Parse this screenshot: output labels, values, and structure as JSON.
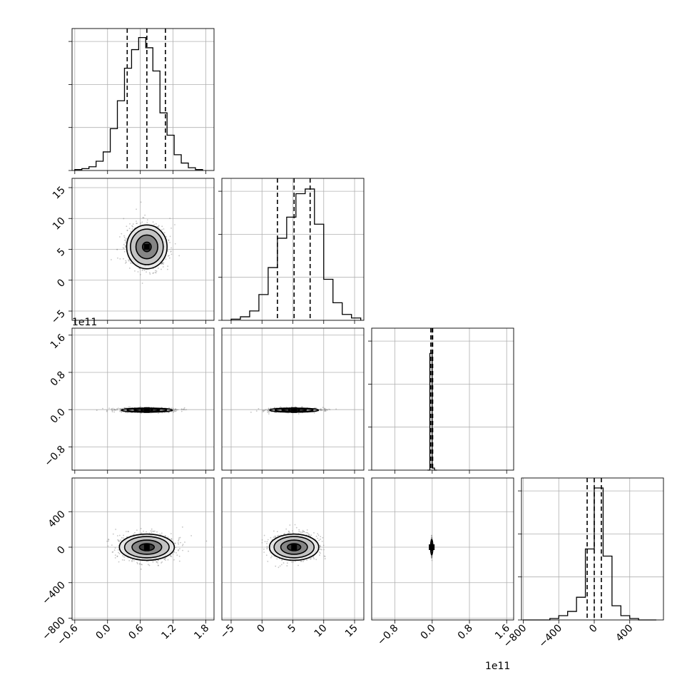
{
  "chart_data": {
    "type": "corner",
    "title": "",
    "colors": {
      "line": "#000000",
      "grid": "#b0b0b0",
      "points": "#7f7f7f",
      "fills": [
        "#ffffff",
        "#e6e6e6",
        "#bdbdbd",
        "#7a7a7a",
        "#2a2a2a"
      ]
    },
    "grid": true,
    "parameters": [
      {
        "ticks": [
          -0.6,
          0.0,
          0.6,
          1.2,
          1.8
        ],
        "tick_labels": [
          "−0.6",
          "0.0",
          "0.6",
          "1.2",
          "1.8"
        ],
        "range": [
          -0.65,
          1.95
        ],
        "quantiles": [
          0.36,
          0.72,
          1.06
        ],
        "offset_text": ""
      },
      {
        "ticks": [
          -5,
          0,
          5,
          10,
          15
        ],
        "tick_labels": [
          "−5",
          "0",
          "5",
          "10",
          "15"
        ],
        "range": [
          -6.5,
          16.5
        ],
        "quantiles": [
          2.5,
          5.2,
          7.8
        ],
        "offset_text": ""
      },
      {
        "ticks": [
          -0.8,
          0.0,
          0.8,
          1.6
        ],
        "tick_labels": [
          "−0.8",
          "0.0",
          "0.8",
          "1.6"
        ],
        "range": [
          -1.3,
          1.75
        ],
        "quantiles": [
          -0.03,
          0.0,
          0.01
        ],
        "offset_text": "1e11"
      },
      {
        "ticks": [
          -800,
          -400,
          0,
          400
        ],
        "tick_labels": [
          "−800",
          "−400",
          "0",
          "400"
        ],
        "range": [
          -820,
          780
        ],
        "quantiles": [
          -80,
          0,
          80
        ],
        "offset_text": ""
      }
    ],
    "histograms": [
      {
        "param": 0,
        "bin_edges": [
          -0.6,
          -0.47,
          -0.34,
          -0.21,
          -0.08,
          0.05,
          0.18,
          0.31,
          0.44,
          0.57,
          0.7,
          0.83,
          0.96,
          1.09,
          1.22,
          1.35,
          1.48,
          1.61,
          1.74
        ],
        "counts": [
          1,
          2,
          4,
          10,
          20,
          45,
          75,
          110,
          130,
          143,
          132,
          107,
          62,
          38,
          17,
          8,
          3,
          1
        ],
        "ymax": 145
      },
      {
        "param": 1,
        "bin_edges": [
          -5,
          -3.5,
          -2,
          -0.5,
          1,
          2.5,
          4,
          5.5,
          7,
          8.5,
          10,
          11.5,
          13,
          14.5,
          16
        ],
        "counts": [
          1,
          3,
          8,
          22,
          45,
          70,
          88,
          108,
          112,
          82,
          35,
          15,
          5,
          2
        ],
        "ymax": 115
      },
      {
        "param": 2,
        "bin_edges": [
          -0.1,
          -0.05,
          0.0,
          0.05,
          0.1
        ],
        "counts": [
          0,
          225,
          4,
          0
        ],
        "ymax": 260
      },
      {
        "param": 3,
        "bin_edges": [
          -800,
          -700,
          -600,
          -500,
          -400,
          -300,
          -200,
          -100,
          0,
          100,
          200,
          300,
          400,
          500,
          600,
          700
        ],
        "counts": [
          0,
          0,
          0,
          1,
          3,
          6,
          16,
          50,
          93,
          45,
          10,
          3,
          1,
          0,
          0
        ],
        "ymax": 95
      }
    ],
    "blobs": [
      {
        "row": 1,
        "col": 0,
        "center": [
          0.72,
          5.4
        ],
        "spread": [
          0.5,
          4.8
        ],
        "levels": [
          0.15,
          0.5,
          1.0,
          1.6
        ]
      },
      {
        "row": 2,
        "col": 0,
        "center": [
          0.72,
          -0.01
        ],
        "spread": [
          0.65,
          0.06
        ],
        "levels": [
          0.2,
          0.6,
          1.1,
          1.6
        ]
      },
      {
        "row": 2,
        "col": 1,
        "center": [
          5.2,
          -0.01
        ],
        "spread": [
          5.5,
          0.06
        ],
        "levels": [
          0.2,
          0.6,
          1.1,
          1.6
        ]
      },
      {
        "row": 3,
        "col": 0,
        "center": [
          0.72,
          0
        ],
        "spread": [
          0.68,
          200
        ],
        "levels": [
          0.15,
          0.5,
          1.0,
          1.5
        ]
      },
      {
        "row": 3,
        "col": 1,
        "center": [
          5.2,
          0
        ],
        "spread": [
          5.4,
          200
        ],
        "levels": [
          0.15,
          0.5,
          1.0,
          1.5
        ]
      },
      {
        "row": 3,
        "col": 2,
        "center": [
          -0.01,
          0
        ],
        "spread": [
          0.012,
          120
        ],
        "levels": [
          0.2,
          0.6,
          1.2
        ]
      }
    ]
  }
}
